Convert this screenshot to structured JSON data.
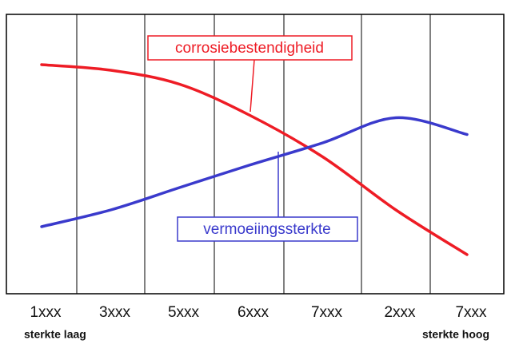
{
  "chart_data": {
    "type": "line",
    "categories": [
      "1xxx",
      "3xxx",
      "5xxx",
      "6xxx",
      "7xxx",
      "2xxx",
      "7xxx"
    ],
    "series": [
      {
        "name": "corrosiebestendigheid",
        "color": "#ee1c25",
        "values": [
          82,
          80,
          75,
          64,
          49,
          30,
          14
        ]
      },
      {
        "name": "vermoeiingssterkte",
        "color": "#3a3acc",
        "values": [
          24,
          30,
          38,
          46,
          54,
          63,
          57
        ]
      }
    ],
    "ylim": [
      0,
      100
    ],
    "annotations": [
      "sterkte laag",
      "sterkte hoog"
    ]
  }
}
